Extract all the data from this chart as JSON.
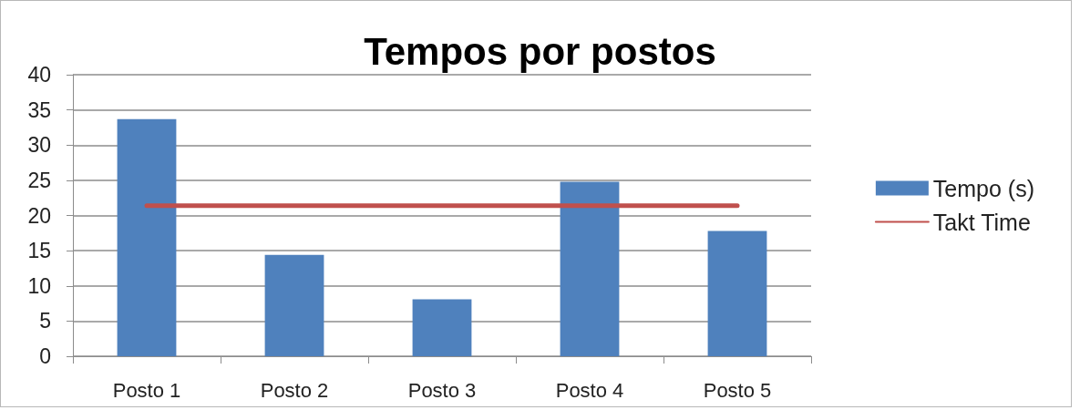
{
  "chart_data": {
    "type": "bar",
    "title": "Tempos por postos",
    "categories": [
      "Posto 1",
      "Posto 2",
      "Posto 3",
      "Posto 4",
      "Posto 5"
    ],
    "series": [
      {
        "name": "Tempo (s)",
        "color": "#4f81bd",
        "values": [
          33.7,
          14.4,
          8.1,
          24.8,
          17.8
        ]
      },
      {
        "name": "Takt Time",
        "type": "line",
        "color": "#c0504d",
        "values": [
          21.4,
          21.4,
          21.4,
          21.4,
          21.4
        ]
      }
    ],
    "ylim": [
      0,
      40
    ],
    "yticks": [
      0,
      5,
      10,
      15,
      20,
      25,
      30,
      35,
      40
    ],
    "grid": "y",
    "legend": "right"
  }
}
